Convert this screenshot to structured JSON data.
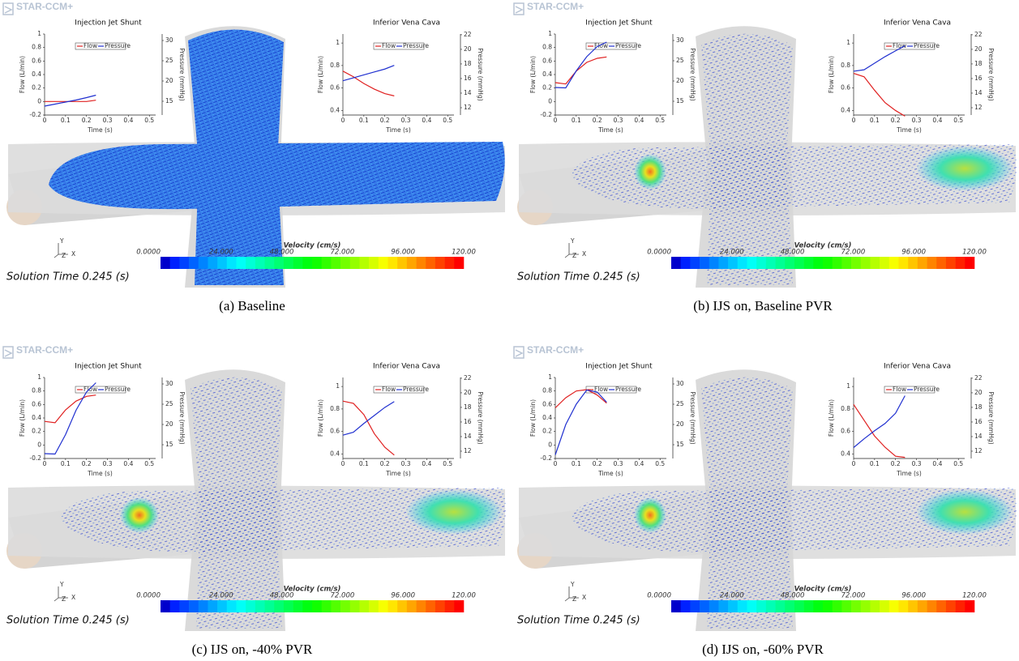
{
  "panels": [
    {
      "caption": "(a) Baseline",
      "logo": "STAR-CCM+",
      "solution_time": "Solution Time 0.245 (s)",
      "triad": [
        "Y",
        "Z",
        "X"
      ],
      "colorbar": {
        "title": "Velocity (cm/s)",
        "clim": [
          0,
          120
        ],
        "ticks": [
          {
            "value": 0,
            "label": "0.0000"
          },
          {
            "value": 24,
            "label": "24.000"
          },
          {
            "value": 48,
            "label": "48.000"
          },
          {
            "value": 72,
            "label": "72.000"
          },
          {
            "value": 96,
            "label": "96.000"
          },
          {
            "value": 120,
            "label": "120.00"
          }
        ]
      },
      "chart_data": [
        {
          "type": "line",
          "title": "Injection Jet Shunt",
          "x_label": "Time (s)",
          "y_label": "Flow (L/min)",
          "y2_label": "Pressure (mmHg)",
          "x": [
            0,
            0.05,
            0.1,
            0.15,
            0.2,
            0.245
          ],
          "xlim": [
            0,
            0.53
          ],
          "xticks": [
            0,
            0.1,
            0.2,
            0.3,
            0.4,
            0.5
          ],
          "ylim": [
            -0.2,
            1
          ],
          "yticks": [
            -0.2,
            0,
            0.2,
            0.4,
            0.6,
            0.8,
            1
          ],
          "y2lim": [
            11.6,
            31.6
          ],
          "y2ticks": [
            15,
            20,
            25,
            30
          ],
          "series": [
            {
              "name": "Flow",
              "color": "#e02020",
              "values": [
                0,
                0,
                0,
                0,
                0,
                0.02
              ]
            },
            {
              "name": "Pressure",
              "color": "#2030d0",
              "axis": "y2",
              "values": [
                13.8,
                14.3,
                14.8,
                15.3,
                15.9,
                16.5
              ]
            }
          ]
        },
        {
          "type": "line",
          "title": "Inferior Vena Cava",
          "x_label": "Time (s)",
          "y_label": "Flow (L/min)",
          "y2_label": "Pressure (mmHg)",
          "x": [
            0,
            0.05,
            0.1,
            0.15,
            0.2,
            0.245
          ],
          "xlim": [
            0,
            0.53
          ],
          "xticks": [
            0,
            0.1,
            0.2,
            0.3,
            0.4,
            0.5
          ],
          "ylim": [
            0.36,
            1.08
          ],
          "yticks": [
            0.4,
            0.6,
            0.8,
            1
          ],
          "y2lim": [
            11,
            22.1
          ],
          "y2ticks": [
            12,
            14,
            16,
            18,
            20,
            22
          ],
          "series": [
            {
              "name": "Flow",
              "color": "#e02020",
              "values": [
                0.75,
                0.7,
                0.64,
                0.59,
                0.55,
                0.53
              ]
            },
            {
              "name": "Pressure",
              "color": "#2030d0",
              "axis": "y2",
              "values": [
                15.7,
                16.1,
                16.5,
                16.9,
                17.3,
                17.8
              ]
            }
          ]
        }
      ]
    },
    {
      "caption": "(b) IJS on, Baseline PVR",
      "logo": "STAR-CCM+",
      "solution_time": "Solution Time 0.245 (s)",
      "triad": [
        "Y",
        "Z",
        "X"
      ],
      "colorbar": {
        "title": "Velocity (cm/s)",
        "clim": [
          0,
          120
        ],
        "ticks": [
          {
            "value": 0,
            "label": "0.0000"
          },
          {
            "value": 24,
            "label": "24.000"
          },
          {
            "value": 48,
            "label": "48.000"
          },
          {
            "value": 72,
            "label": "72.000"
          },
          {
            "value": 96,
            "label": "96.000"
          },
          {
            "value": 120,
            "label": "120.00"
          }
        ]
      },
      "chart_data": [
        {
          "type": "line",
          "title": "Injection Jet Shunt",
          "x_label": "Time (s)",
          "y_label": "Flow (L/min)",
          "y2_label": "Pressure (mmHg)",
          "x": [
            0,
            0.05,
            0.1,
            0.15,
            0.2,
            0.245
          ],
          "xlim": [
            0,
            0.53
          ],
          "xticks": [
            0,
            0.1,
            0.2,
            0.3,
            0.4,
            0.5
          ],
          "ylim": [
            -0.2,
            1
          ],
          "yticks": [
            -0.2,
            0,
            0.2,
            0.4,
            0.6,
            0.8,
            1
          ],
          "y2lim": [
            11.6,
            31.6
          ],
          "y2ticks": [
            15,
            20,
            25,
            30
          ],
          "series": [
            {
              "name": "Flow",
              "color": "#e02020",
              "values": [
                0.28,
                0.26,
                0.45,
                0.58,
                0.64,
                0.66
              ]
            },
            {
              "name": "Pressure",
              "color": "#2030d0",
              "axis": "y2",
              "values": [
                18.4,
                18.3,
                22.5,
                26,
                28.5,
                29.6
              ]
            }
          ]
        },
        {
          "type": "line",
          "title": "Inferior Vena Cava",
          "x_label": "Time (s)",
          "y_label": "Flow (L/min)",
          "y2_label": "Pressure (mmHg)",
          "x": [
            0,
            0.05,
            0.1,
            0.15,
            0.2,
            0.245
          ],
          "xlim": [
            0,
            0.53
          ],
          "xticks": [
            0,
            0.1,
            0.2,
            0.3,
            0.4,
            0.5
          ],
          "ylim": [
            0.36,
            1.08
          ],
          "yticks": [
            0.4,
            0.6,
            0.8,
            1
          ],
          "y2lim": [
            11,
            22.1
          ],
          "y2ticks": [
            12,
            14,
            16,
            18,
            20,
            22
          ],
          "series": [
            {
              "name": "Flow",
              "color": "#e02020",
              "values": [
                0.73,
                0.7,
                0.58,
                0.47,
                0.4,
                0.35
              ]
            },
            {
              "name": "Pressure",
              "color": "#2030d0",
              "axis": "y2",
              "values": [
                17,
                17.2,
                18.1,
                19,
                19.8,
                20.5
              ]
            }
          ]
        }
      ]
    },
    {
      "caption": "(c) IJS on, -40% PVR",
      "logo": "STAR-CCM+",
      "solution_time": "Solution Time 0.245 (s)",
      "triad": [
        "Y",
        "Z",
        "X"
      ],
      "colorbar": {
        "title": "Velocity (cm/s)",
        "clim": [
          0,
          120
        ],
        "ticks": [
          {
            "value": 0,
            "label": "0.0000"
          },
          {
            "value": 24,
            "label": "24.000"
          },
          {
            "value": 48,
            "label": "48.000"
          },
          {
            "value": 72,
            "label": "72.000"
          },
          {
            "value": 96,
            "label": "96.000"
          },
          {
            "value": 120,
            "label": "120.00"
          }
        ]
      },
      "chart_data": [
        {
          "type": "line",
          "title": "Injection Jet Shunt",
          "x_label": "Time (s)",
          "y_label": "Flow (L/min)",
          "y2_label": "Pressure (mmHg)",
          "x": [
            0,
            0.05,
            0.1,
            0.15,
            0.2,
            0.245
          ],
          "xlim": [
            0,
            0.53
          ],
          "xticks": [
            0,
            0.1,
            0.2,
            0.3,
            0.4,
            0.5
          ],
          "ylim": [
            -0.2,
            1
          ],
          "yticks": [
            -0.2,
            0,
            0.2,
            0.4,
            0.6,
            0.8,
            1
          ],
          "y2lim": [
            11.6,
            31.6
          ],
          "y2ticks": [
            15,
            20,
            25,
            30
          ],
          "series": [
            {
              "name": "Flow",
              "color": "#e02020",
              "values": [
                0.35,
                0.33,
                0.52,
                0.65,
                0.72,
                0.74
              ]
            },
            {
              "name": "Pressure",
              "color": "#2030d0",
              "axis": "y2",
              "values": [
                12.8,
                12.7,
                17.5,
                23.5,
                28,
                30.3
              ]
            }
          ]
        },
        {
          "type": "line",
          "title": "Inferior Vena Cava",
          "x_label": "Time (s)",
          "y_label": "Flow (L/min)",
          "y2_label": "Pressure (mmHg)",
          "x": [
            0,
            0.05,
            0.1,
            0.15,
            0.2,
            0.245
          ],
          "xlim": [
            0,
            0.53
          ],
          "xticks": [
            0,
            0.1,
            0.2,
            0.3,
            0.4,
            0.5
          ],
          "ylim": [
            0.36,
            1.08
          ],
          "yticks": [
            0.4,
            0.6,
            0.8,
            1
          ],
          "y2lim": [
            11,
            22.1
          ],
          "y2ticks": [
            12,
            14,
            16,
            18,
            20,
            22
          ],
          "series": [
            {
              "name": "Flow",
              "color": "#e02020",
              "values": [
                0.87,
                0.85,
                0.75,
                0.58,
                0.46,
                0.39
              ]
            },
            {
              "name": "Pressure",
              "color": "#2030d0",
              "axis": "y2",
              "values": [
                14.2,
                14.6,
                15.8,
                16.9,
                18,
                18.8
              ]
            }
          ]
        }
      ]
    },
    {
      "caption": "(d) IJS on, -60% PVR",
      "logo": "STAR-CCM+",
      "solution_time": "Solution Time 0.245 (s)",
      "triad": [
        "Y",
        "Z",
        "X"
      ],
      "colorbar": {
        "title": "Velocity (cm/s)",
        "clim": [
          0,
          120
        ],
        "ticks": [
          {
            "value": 0,
            "label": "0.0000"
          },
          {
            "value": 24,
            "label": "24.000"
          },
          {
            "value": 48,
            "label": "48.000"
          },
          {
            "value": 72,
            "label": "72.000"
          },
          {
            "value": 96,
            "label": "96.000"
          },
          {
            "value": 120,
            "label": "120.00"
          }
        ]
      },
      "chart_data": [
        {
          "type": "line",
          "title": "Injection Jet Shunt",
          "x_label": "Time (s)",
          "y_label": "Flow (L/min)",
          "y2_label": "Pressure (mmHg)",
          "x": [
            0,
            0.05,
            0.1,
            0.15,
            0.2,
            0.245
          ],
          "xlim": [
            0,
            0.53
          ],
          "xticks": [
            0,
            0.1,
            0.2,
            0.3,
            0.4,
            0.5
          ],
          "ylim": [
            -0.2,
            1
          ],
          "yticks": [
            -0.2,
            0,
            0.2,
            0.4,
            0.6,
            0.8,
            1
          ],
          "y2lim": [
            11.6,
            31.6
          ],
          "y2ticks": [
            15,
            20,
            25,
            30
          ],
          "series": [
            {
              "name": "Flow",
              "color": "#e02020",
              "values": [
                0.55,
                0.7,
                0.8,
                0.82,
                0.74,
                0.62
              ]
            },
            {
              "name": "Pressure",
              "color": "#2030d0",
              "axis": "y2",
              "values": [
                12.5,
                20,
                25,
                28.5,
                28,
                25.5
              ]
            }
          ]
        },
        {
          "type": "line",
          "title": "Inferior Vena Cava",
          "x_label": "Time (s)",
          "y_label": "Flow (L/min)",
          "y2_label": "Pressure (mmHg)",
          "x": [
            0,
            0.05,
            0.1,
            0.15,
            0.2,
            0.245
          ],
          "xlim": [
            0,
            0.53
          ],
          "xticks": [
            0,
            0.1,
            0.2,
            0.3,
            0.4,
            0.5
          ],
          "ylim": [
            0.36,
            1.08
          ],
          "yticks": [
            0.4,
            0.6,
            0.8,
            1
          ],
          "y2lim": [
            11,
            22.1
          ],
          "y2ticks": [
            12,
            14,
            16,
            18,
            20,
            22
          ],
          "series": [
            {
              "name": "Flow",
              "color": "#e02020",
              "values": [
                0.84,
                0.7,
                0.56,
                0.46,
                0.38,
                0.37
              ]
            },
            {
              "name": "Pressure",
              "color": "#2030d0",
              "axis": "y2",
              "values": [
                12.5,
                13.7,
                14.8,
                15.8,
                17.2,
                19.6
              ]
            }
          ]
        }
      ]
    }
  ]
}
